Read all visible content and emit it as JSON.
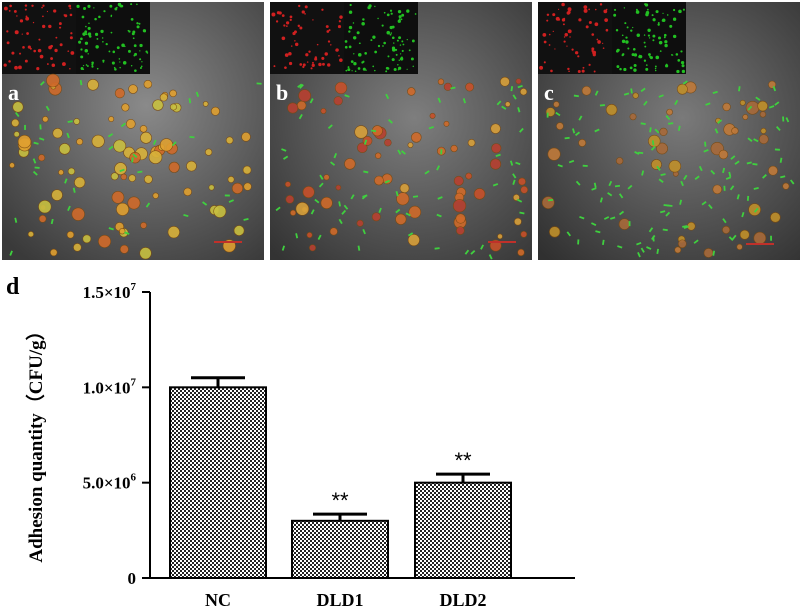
{
  "panels": [
    {
      "label": "a"
    },
    {
      "label": "b"
    },
    {
      "label": "c"
    }
  ],
  "chart_label": "d",
  "colors": {
    "red_channel": "#d02020",
    "green_channel": "#22c022",
    "bar_fill_pattern": "checkered"
  },
  "chart_data": {
    "type": "bar",
    "categories": [
      "NC",
      "DLD1",
      "DLD2"
    ],
    "values": [
      10000000,
      3000000,
      5000000
    ],
    "errors": [
      500000,
      350000,
      450000
    ],
    "significance": [
      "",
      "**",
      "**"
    ],
    "ylabel": "Adhesion quantity（CFU/g）",
    "ylim": [
      0,
      15000000
    ],
    "yticks": [
      {
        "value": 0,
        "mantissa": "0",
        "exp": ""
      },
      {
        "value": 5000000,
        "mantissa": "5.0×10",
        "exp": "6"
      },
      {
        "value": 10000000,
        "mantissa": "1.0×10",
        "exp": "7"
      },
      {
        "value": 15000000,
        "mantissa": "1.5×10",
        "exp": "7"
      }
    ]
  }
}
